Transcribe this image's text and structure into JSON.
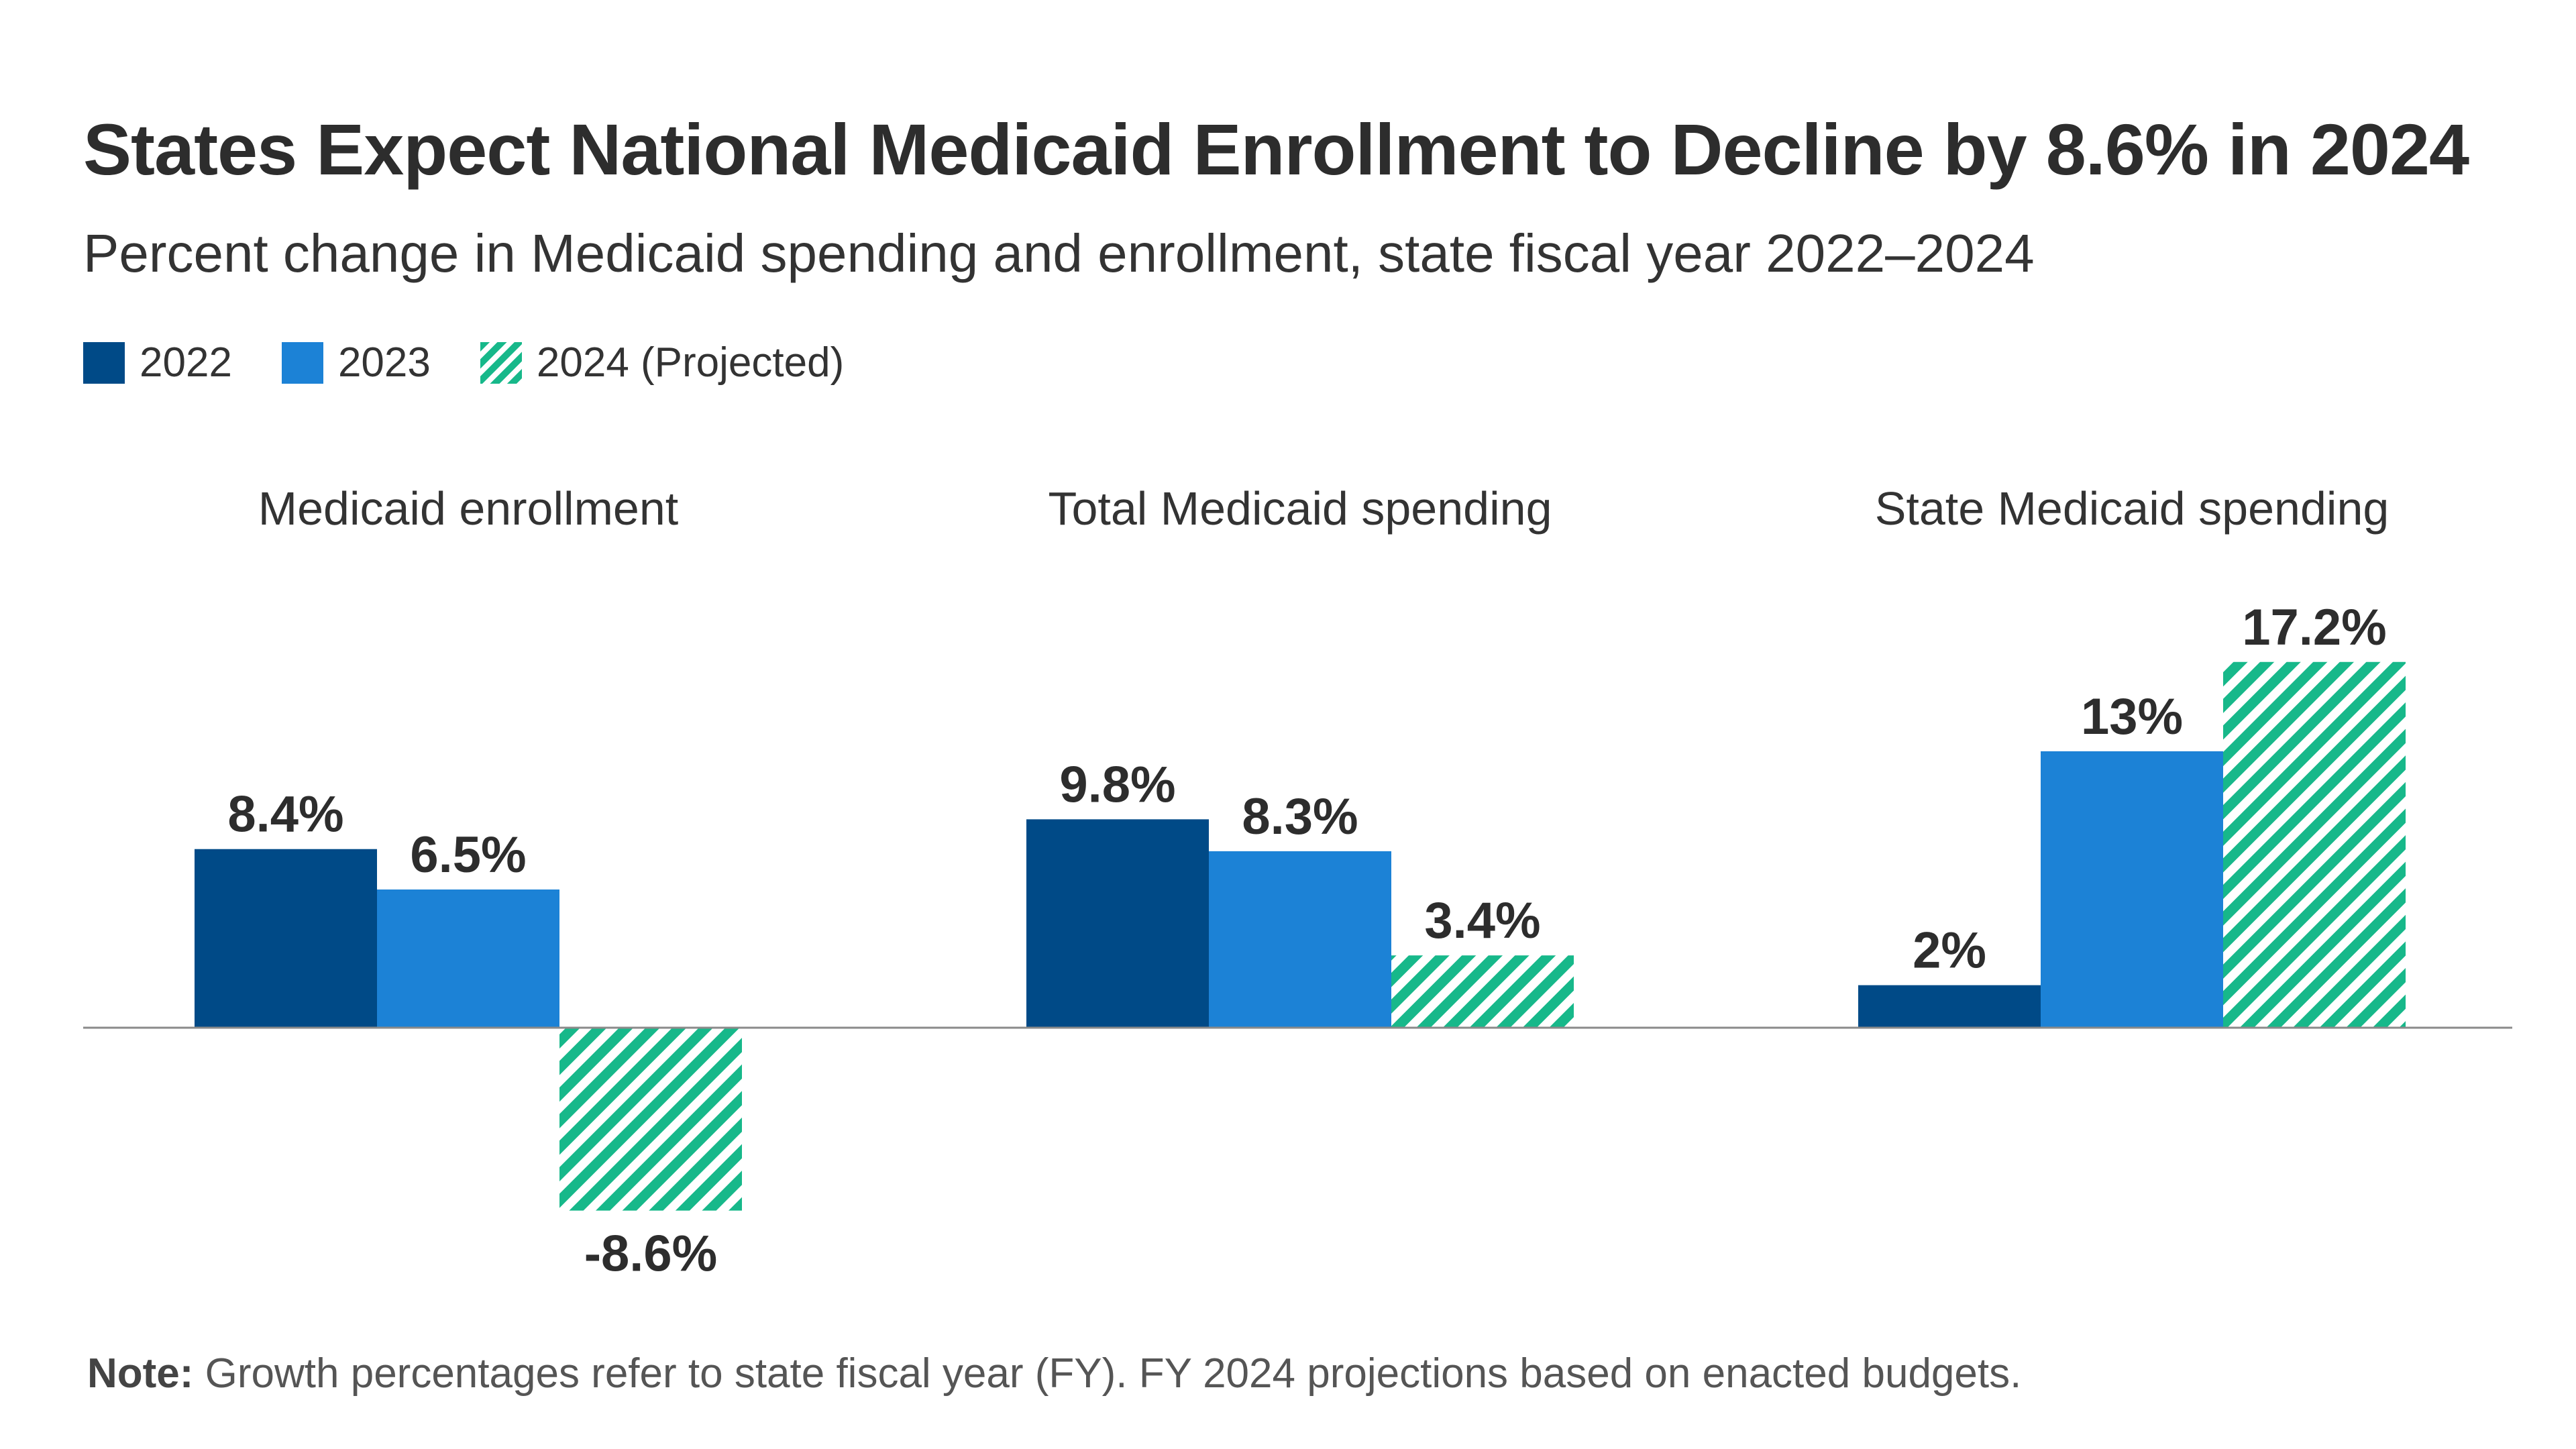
{
  "chart_data": {
    "type": "bar",
    "title": "States Expect National Medicaid Enrollment to Decline by 8.6% in 2024",
    "subtitle": "Percent change in Medicaid spending and enrollment, state fiscal year 2022–2024",
    "categories": [
      "Medicaid enrollment",
      "Total Medicaid spending",
      "State Medicaid spending"
    ],
    "series": [
      {
        "name": "2022",
        "values": [
          8.4,
          9.8,
          2.0
        ],
        "labels": [
          "8.4%",
          "9.8%",
          "2%"
        ],
        "color": "#004a87",
        "pattern": "solid"
      },
      {
        "name": "2023",
        "values": [
          6.5,
          8.3,
          13.0
        ],
        "labels": [
          "6.5%",
          "8.3%",
          "13%"
        ],
        "color": "#1c82d6",
        "pattern": "solid"
      },
      {
        "name": "2024 (Projected)",
        "values": [
          -8.6,
          3.4,
          17.2
        ],
        "labels": [
          "-8.6%",
          "3.4%",
          "17.2%"
        ],
        "color": "#17b88a",
        "pattern": "diagonal-stripes"
      }
    ],
    "ylim": [
      -8.6,
      17.2
    ],
    "xlabel": "",
    "ylabel": "",
    "legend_position": "top-left",
    "grid": false,
    "note_label": "Note:",
    "note_text": " Growth percentages refer to state fiscal year (FY). FY 2024 projections based on enacted budgets."
  }
}
